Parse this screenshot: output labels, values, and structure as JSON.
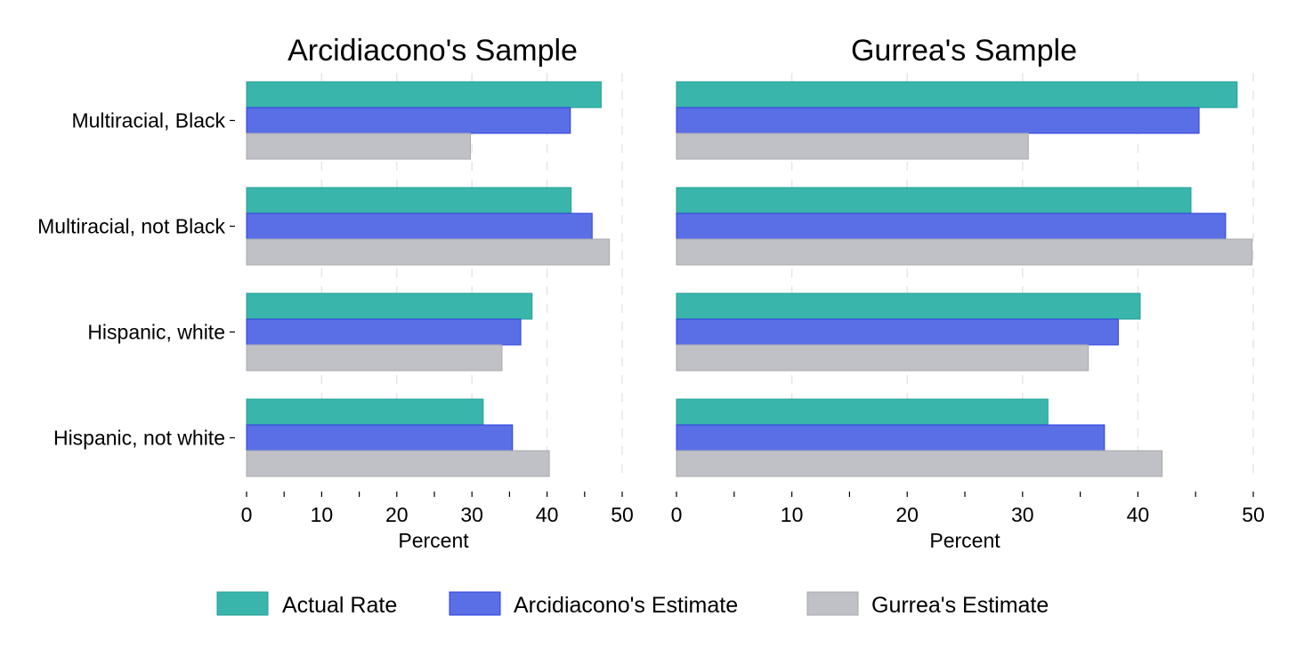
{
  "chart_data": {
    "type": "bar",
    "orientation": "horizontal",
    "grid": "dashed vertical",
    "legend_position": "bottom",
    "categories": [
      "Multiracial, Black",
      "Multiracial, not Black",
      "Hispanic, white",
      "Hispanic, not white"
    ],
    "xlabel": "Percent",
    "xlim": [
      0,
      50
    ],
    "xticks": [
      0,
      10,
      20,
      30,
      40,
      50
    ],
    "legend": [
      {
        "name": "Actual Rate",
        "color": "#3ab5ac",
        "stroke": "#22a093"
      },
      {
        "name": "Arcidiacono's Estimate",
        "color": "#5a6fe6",
        "stroke": "#2c3fdc"
      },
      {
        "name": "Gurrea's Estimate",
        "color": "#c0c1c6",
        "stroke": "#a8a9ae"
      }
    ],
    "panels": [
      {
        "title": "Arcidiacono's Sample",
        "series": [
          {
            "name": "Actual Rate",
            "values": [
              47.2,
              43.2,
              38.0,
              31.5
            ]
          },
          {
            "name": "Arcidiacono's Estimate",
            "values": [
              43.1,
              46.0,
              36.5,
              35.4
            ]
          },
          {
            "name": "Gurrea's Estimate",
            "values": [
              29.8,
              48.3,
              34.0,
              40.3
            ]
          }
        ]
      },
      {
        "title": "Gurrea's Sample",
        "series": [
          {
            "name": "Actual Rate",
            "values": [
              48.6,
              44.6,
              40.2,
              32.2
            ]
          },
          {
            "name": "Arcidiacono's Estimate",
            "values": [
              45.3,
              47.6,
              38.3,
              37.1
            ]
          },
          {
            "name": "Gurrea's Estimate",
            "values": [
              30.5,
              49.9,
              35.7,
              42.1
            ]
          }
        ]
      }
    ]
  }
}
